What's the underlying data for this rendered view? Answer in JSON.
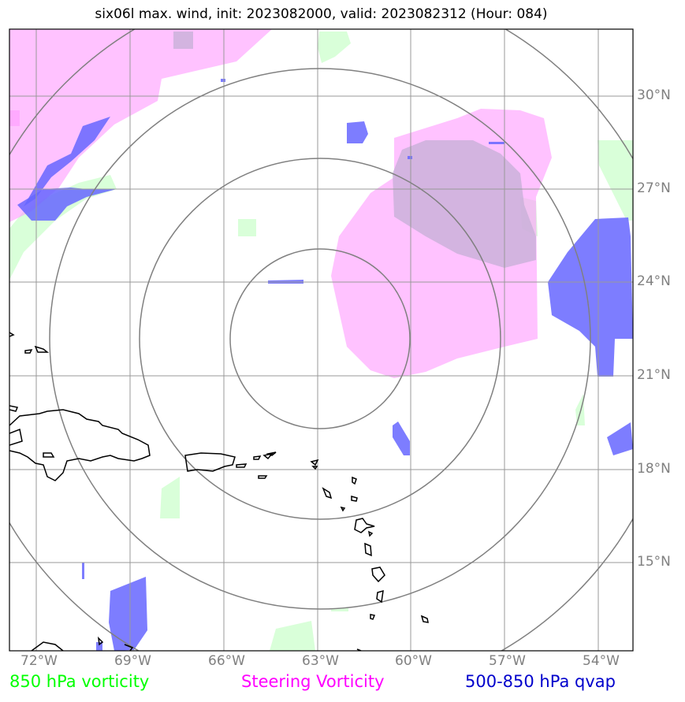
{
  "title": "six06l max. wind, init: 2023082000, valid: 2023082312 (Hour: 084)",
  "legend": {
    "vorticity_850": "850 hPa vorticity",
    "steering": "Steering Vorticity",
    "qvap": "500-850 hPa qvap"
  },
  "colors": {
    "vorticity_850": "#00ff00",
    "steering": "#ff00ff",
    "qvap": "#0000cc",
    "grid": "#808080",
    "coastline": "#000000"
  },
  "longitude_labels": [
    "72°W",
    "69°W",
    "66°W",
    "63°W",
    "60°W",
    "57°W",
    "54°W"
  ],
  "latitude_labels": [
    "30°N",
    "27°N",
    "24°N",
    "21°N",
    "18°N",
    "15°N"
  ]
}
